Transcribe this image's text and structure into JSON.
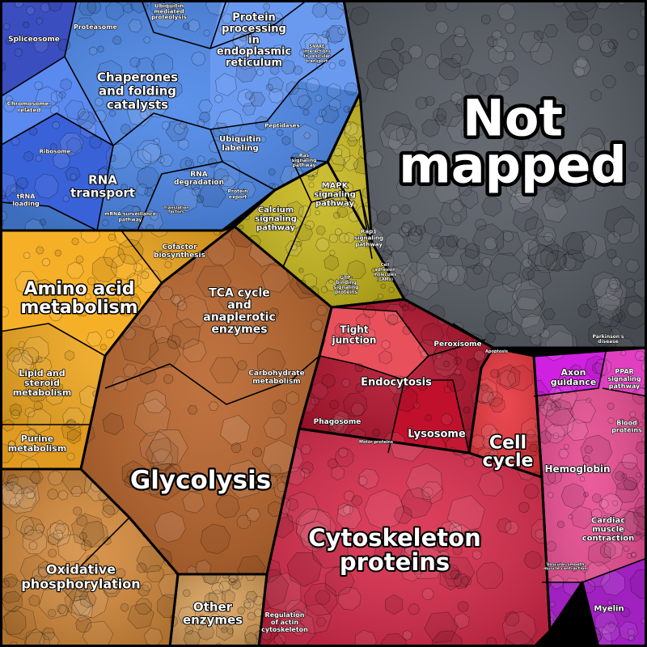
{
  "regions": [
    {
      "id": "genetic",
      "color": "#4a86e8"
    },
    {
      "id": "not-mapped",
      "color": "#555a62"
    },
    {
      "id": "signaling",
      "color": "#c8b81c"
    },
    {
      "id": "metabolism-light",
      "color": "#f3a91e"
    },
    {
      "id": "metabolism-dark",
      "color": "#b8632a"
    },
    {
      "id": "oxphos",
      "color": "#d4893a"
    },
    {
      "id": "other-enzymes",
      "color": "#d9a05a"
    },
    {
      "id": "cytoskeleton",
      "color": "#d92a4a"
    },
    {
      "id": "cellular",
      "color": "#b0102a"
    },
    {
      "id": "cell-cycle",
      "color": "#e8343c"
    },
    {
      "id": "tight-junction",
      "color": "#e85060"
    },
    {
      "id": "organismal",
      "color": "#e84a90"
    },
    {
      "id": "axon",
      "color": "#d020e0"
    },
    {
      "id": "myelin",
      "color": "#a020c0"
    }
  ],
  "labels": {
    "not_mapped": [
      "Not",
      "mapped"
    ],
    "glycolysis": "Glycolysis",
    "cytoskeleton": [
      "Cytoskeleton",
      "proteins"
    ],
    "amino_acid": [
      "Amino acid",
      "metabolism"
    ],
    "chaperones": [
      "Chaperones",
      "and folding",
      "catalysts"
    ],
    "cell_cycle": [
      "Cell",
      "cycle"
    ],
    "tca": [
      "TCA cycle",
      "and",
      "anaplerotic",
      "enzymes"
    ],
    "oxphos": [
      "Oxidative",
      "phosphorylation"
    ],
    "protein_processing": [
      "Protein",
      "processing",
      "in",
      "endoplasmic",
      "reticulum"
    ],
    "rna_transport": [
      "RNA",
      "transport"
    ],
    "other_enzymes": [
      "Other",
      "enzymes"
    ],
    "endocytosis": "Endocytosis",
    "lysosome": "Lysosome",
    "tight_junction": [
      "Tight",
      "junction"
    ],
    "hemoglobin": "Hemoglobin",
    "axon_guidance": [
      "Axon",
      "guidance"
    ],
    "mapk": [
      "MAPK",
      "signaling",
      "pathway"
    ],
    "calcium": [
      "Calcium",
      "signaling",
      "pathway"
    ],
    "lipid_steroid": [
      "Lipid and",
      "steroid",
      "metabolism"
    ],
    "purine": [
      "Purine",
      "metabolism"
    ],
    "cofactor": [
      "Cofactor",
      "biosynthesis"
    ],
    "carbohydrate": [
      "Carbohydrate",
      "metabolism"
    ],
    "ubiquitin_labeling": [
      "Ubiquitin",
      "labeling"
    ],
    "rna_degradation": [
      "RNA",
      "degradation"
    ],
    "cardiac": [
      "Cardiac",
      "muscle",
      "contraction"
    ],
    "myelin": "Myelin",
    "blood_proteins": [
      "Blood",
      "proteins"
    ],
    "ppar": [
      "PPAR",
      "signaling",
      "pathway"
    ],
    "peroxisome": "Peroxisome",
    "phagosome": "Phagosome",
    "regulation_actin": [
      "Regulation",
      "of actin",
      "cytoskeleton"
    ],
    "spliceosome": "Spliceosome",
    "proteasome": "Proteasome",
    "ubiquitin_mediated": [
      "Ubiquitin",
      "mediated",
      "proteolysis"
    ],
    "ribosome": "Ribosome",
    "trna_loading": [
      "tRNA",
      "loading"
    ],
    "peptidases": "Peptidases",
    "chromosome_related": [
      "Chromosome-",
      "related"
    ],
    "protein_export": [
      "Protein",
      "export"
    ],
    "mrna_surveillance": [
      "mRNA surveillance",
      "pathway"
    ],
    "rap1": [
      "Rap1",
      "signaling",
      "pathway"
    ],
    "ras": [
      "Ras",
      "signaling",
      "pathway"
    ],
    "cell_adhesion": [
      "Cell",
      "adhesion",
      "molecules",
      "(CAMs)"
    ],
    "gtp_binding": [
      "GTP-",
      "binding",
      "signaling",
      "proteins"
    ],
    "parkinsons": [
      "Parkinson's",
      "disease"
    ],
    "motor_proteins": "Motor proteins",
    "apoptosis": "Apoptosis",
    "snare": [
      "SNARE",
      "interactions",
      "in vesicular",
      "transport"
    ],
    "translation_factors": [
      "Translation",
      "factors"
    ],
    "vascular": [
      "Vascular smooth",
      "muscle contraction"
    ]
  }
}
